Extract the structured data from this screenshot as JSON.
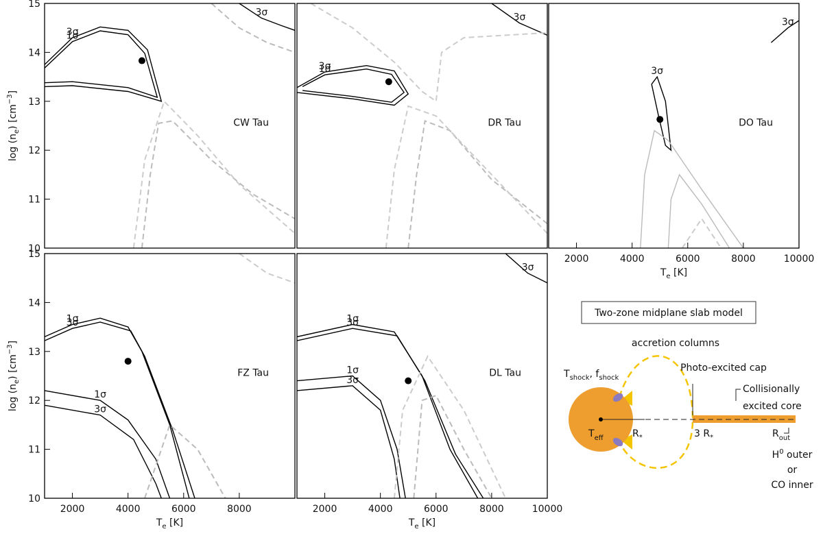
{
  "chart_data": [
    {
      "type": "contour",
      "title": "CW Tau",
      "xlim": [
        1000,
        10000
      ],
      "ylim": [
        10,
        15
      ],
      "yticks": [
        10,
        11,
        12,
        13,
        14,
        15
      ],
      "ylabel": {
        "a": "log (n",
        "b": "e",
        "c": ") [cm",
        "d": "−3",
        "e": "]"
      },
      "point": {
        "x": 4500,
        "y": 13.83
      },
      "contours": [
        {
          "label": "3σ",
          "color": "#000000",
          "dash": false,
          "x": [
            1000,
            2000,
            3000,
            4000,
            4700,
            5200,
            4000,
            2000,
            1000
          ],
          "y": [
            13.75,
            14.3,
            14.52,
            14.45,
            14.05,
            13.0,
            13.2,
            13.32,
            13.3
          ]
        },
        {
          "label": "1σ",
          "color": "#000000",
          "dash": false,
          "x": [
            1000,
            2000,
            3000,
            4000,
            4600,
            5050,
            4000,
            2000,
            1000
          ],
          "y": [
            13.68,
            14.22,
            14.44,
            14.36,
            13.98,
            13.08,
            13.28,
            13.4,
            13.38
          ]
        },
        {
          "label": "3σ",
          "color": "#000000",
          "dash": false,
          "x": [
            8000,
            8800,
            9500,
            10000
          ],
          "y": [
            15,
            14.7,
            14.55,
            14.45
          ]
        },
        {
          "color": "#bbbbbb",
          "dash": true,
          "x": [
            4500,
            4800,
            5100,
            5600,
            7000,
            8500,
            10000
          ],
          "y": [
            10,
            11.5,
            12.55,
            12.6,
            11.8,
            11.1,
            10.6
          ]
        },
        {
          "color": "#cccccc",
          "dash": true,
          "x": [
            4200,
            4600,
            5300,
            6500,
            8000,
            10000
          ],
          "y": [
            10,
            11.8,
            13.0,
            12.3,
            11.3,
            10.3
          ]
        },
        {
          "color": "#bbbbbb",
          "dash": true,
          "x": [
            7000,
            8000,
            9000,
            10000
          ],
          "y": [
            15,
            14.5,
            14.2,
            14.0
          ]
        }
      ]
    },
    {
      "type": "contour",
      "title": "DR Tau",
      "xlim": [
        1000,
        10000
      ],
      "ylim": [
        10,
        15
      ],
      "point": {
        "x": 4300,
        "y": 13.4
      },
      "contours": [
        {
          "label": "3σ",
          "color": "#000000",
          "dash": false,
          "x": [
            1000,
            2000,
            3500,
            4500,
            5000,
            4500,
            3000,
            1000
          ],
          "y": [
            13.28,
            13.6,
            13.73,
            13.62,
            13.15,
            12.92,
            13.05,
            13.18
          ]
        },
        {
          "label": "1σ",
          "color": "#000000",
          "dash": false,
          "x": [
            1200,
            2000,
            3500,
            4400,
            4850,
            4400,
            3000,
            1200
          ],
          "y": [
            13.3,
            13.54,
            13.66,
            13.55,
            13.18,
            12.98,
            13.1,
            13.22
          ]
        },
        {
          "label": "3σ",
          "color": "#000000",
          "dash": false,
          "x": [
            8000,
            9000,
            10000
          ],
          "y": [
            15,
            14.6,
            14.35
          ]
        },
        {
          "color": "#bbbbbb",
          "dash": true,
          "x": [
            5000,
            5300,
            5600,
            6500,
            8000,
            10000
          ],
          "y": [
            10,
            11.5,
            12.6,
            12.4,
            11.4,
            10.5
          ]
        },
        {
          "color": "#cccccc",
          "dash": true,
          "x": [
            4200,
            4500,
            5000,
            6000,
            8000,
            10000
          ],
          "y": [
            10,
            11.6,
            12.9,
            12.7,
            11.5,
            10.3
          ]
        },
        {
          "color": "#cccccc",
          "dash": true,
          "x": [
            1500,
            3000,
            4500,
            5500,
            6000,
            6200,
            7000,
            10000
          ],
          "y": [
            15,
            14.5,
            13.8,
            13.2,
            13.0,
            14.0,
            14.3,
            14.4
          ]
        }
      ]
    },
    {
      "type": "contour",
      "title": "DO Tau",
      "xlim": [
        1000,
        10000
      ],
      "ylim": [
        10,
        15
      ],
      "xticks": [
        2000,
        4000,
        6000,
        8000,
        10000
      ],
      "xlabel": {
        "a": "T",
        "b": "e",
        "c": " [K]"
      },
      "point": {
        "x": 5000,
        "y": 12.63
      },
      "contours": [
        {
          "label": "3σ",
          "color": "#000000",
          "dash": false,
          "x": [
            4700,
            4900,
            5200,
            5400,
            5200,
            4950,
            4700
          ],
          "y": [
            13.35,
            13.5,
            13.0,
            12.0,
            12.1,
            12.7,
            13.35
          ]
        },
        {
          "label": "3σ",
          "color": "#000000",
          "dash": false,
          "x": [
            9000,
            9600,
            10000
          ],
          "y": [
            14.2,
            14.5,
            14.65
          ]
        },
        {
          "color": "#bbbbbb",
          "dash": false,
          "x": [
            4300,
            4450,
            4800,
            5300,
            6500,
            8000
          ],
          "y": [
            10,
            11.5,
            12.4,
            12.2,
            11.2,
            10
          ]
        },
        {
          "color": "#bbbbbb",
          "dash": false,
          "x": [
            5300,
            5400,
            5700,
            6500,
            7500
          ],
          "y": [
            10,
            11.0,
            11.5,
            10.9,
            10
          ]
        },
        {
          "color": "#cccccc",
          "dash": true,
          "x": [
            5800,
            6500,
            7200
          ],
          "y": [
            10,
            10.6,
            10
          ]
        }
      ]
    },
    {
      "type": "contour",
      "title": "FZ Tau",
      "xlim": [
        1000,
        10000
      ],
      "ylim": [
        10,
        15
      ],
      "xticks": [
        2000,
        4000,
        6000,
        8000
      ],
      "yticks": [
        10,
        11,
        12,
        13,
        14,
        15
      ],
      "xlabel": {
        "a": "T",
        "b": "e",
        "c": " [K]"
      },
      "ylabel": {
        "a": "log (n",
        "b": "e",
        "c": ") [cm",
        "d": "−3",
        "e": "]"
      },
      "point": {
        "x": 4000,
        "y": 12.8
      },
      "contours": [
        {
          "label": "1σ",
          "color": "#000000",
          "dash": false,
          "x": [
            1000,
            2000,
            3000,
            4000,
            4500,
            5500,
            6200
          ],
          "y": [
            13.3,
            13.55,
            13.68,
            13.5,
            13.0,
            11.5,
            10
          ]
        },
        {
          "label": "3σ",
          "color": "#000000",
          "dash": false,
          "x": [
            1000,
            2000,
            3000,
            4100,
            4600,
            5600,
            6400
          ],
          "y": [
            13.22,
            13.47,
            13.6,
            13.42,
            12.9,
            11.4,
            10
          ]
        },
        {
          "label": "1σ",
          "color": "#000000",
          "dash": false,
          "x": [
            1000,
            3000,
            4000,
            5000,
            5500
          ],
          "y": [
            12.2,
            12.0,
            11.6,
            10.8,
            10
          ]
        },
        {
          "label": "3σ",
          "color": "#000000",
          "dash": false,
          "x": [
            1000,
            3000,
            4200,
            5000,
            5200
          ],
          "y": [
            11.9,
            11.7,
            11.2,
            10.3,
            10
          ]
        },
        {
          "color": "#cccccc",
          "dash": true,
          "x": [
            8000,
            9000,
            10000
          ],
          "y": [
            15,
            14.6,
            14.4
          ]
        },
        {
          "color": "#bbbbbb",
          "dash": true,
          "x": [
            4600,
            5500,
            6500,
            7500
          ],
          "y": [
            10,
            11.5,
            11.0,
            10
          ]
        }
      ]
    },
    {
      "type": "contour",
      "title": "DL Tau",
      "xlim": [
        1000,
        10000
      ],
      "ylim": [
        10,
        15
      ],
      "xticks": [
        2000,
        4000,
        6000,
        8000,
        10000
      ],
      "xlabel": {
        "a": "T",
        "b": "e",
        "c": " [K]"
      },
      "point": {
        "x": 5000,
        "y": 12.4
      },
      "contours": [
        {
          "label": "1σ",
          "color": "#000000",
          "dash": false,
          "x": [
            1000,
            3000,
            4500,
            5500,
            6500,
            7500
          ],
          "y": [
            13.3,
            13.55,
            13.4,
            12.5,
            11.0,
            10
          ]
        },
        {
          "label": "3σ",
          "color": "#000000",
          "dash": false,
          "x": [
            1000,
            3000,
            4600,
            5600,
            6700,
            7700
          ],
          "y": [
            13.22,
            13.47,
            13.32,
            12.4,
            10.9,
            10
          ]
        },
        {
          "label": "1σ",
          "color": "#000000",
          "dash": false,
          "x": [
            1000,
            3000,
            4000,
            4600,
            4900
          ],
          "y": [
            12.4,
            12.5,
            12.0,
            11.0,
            10
          ]
        },
        {
          "label": "3σ",
          "color": "#000000",
          "dash": false,
          "x": [
            1000,
            3000,
            4000,
            4500,
            4700
          ],
          "y": [
            12.2,
            12.3,
            11.8,
            10.8,
            10
          ]
        },
        {
          "label": "3σ",
          "color": "#000000",
          "dash": false,
          "x": [
            8500,
            9300,
            10000
          ],
          "y": [
            15,
            14.6,
            14.4
          ]
        },
        {
          "color": "#bbbbbb",
          "dash": true,
          "x": [
            5200,
            5500,
            6000,
            7000,
            8000
          ],
          "y": [
            10,
            12.0,
            12.1,
            11.0,
            10
          ]
        },
        {
          "color": "#cccccc",
          "dash": true,
          "x": [
            4500,
            4800,
            5700,
            7000,
            8500
          ],
          "y": [
            10,
            11.8,
            12.9,
            11.8,
            10
          ]
        }
      ]
    }
  ],
  "diagram": {
    "title": "Two-zone midplane slab model",
    "accretion": "accretion columns",
    "cap": "Photo-excited cap",
    "core": [
      "Collisionally",
      "excited core"
    ],
    "tshock": {
      "a": "T",
      "b": "shock",
      "c": ", f",
      "d": "shock"
    },
    "teff": {
      "a": "T",
      "b": "eff"
    },
    "rstar": {
      "a": "R",
      "b": "*"
    },
    "r3": {
      "a": "3 R",
      "b": "*"
    },
    "rout": {
      "a": "R",
      "b": "out"
    },
    "h0": {
      "a": "H",
      "b": "0",
      "c": " outer"
    },
    "or": "or",
    "co": "CO inner"
  }
}
